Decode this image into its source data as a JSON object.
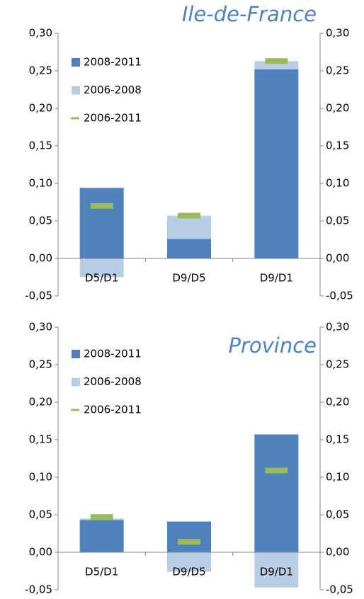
{
  "chart_data": [
    {
      "type": "bar",
      "title": "Ile-de-France",
      "categories": [
        "D5/D1",
        "D9/D5",
        "D9/D1"
      ],
      "series": [
        {
          "name": "2008-2011",
          "color": "#4f81bd",
          "values": [
            0.094,
            0.026,
            0.252
          ]
        },
        {
          "name": "2006-2008",
          "color": "#b9cde5",
          "values": [
            -0.025,
            0.031,
            0.011
          ]
        },
        {
          "name": "2006-2011",
          "color": "#9bbb59",
          "marker": true,
          "values": [
            0.07,
            0.057,
            0.263
          ]
        }
      ],
      "ylim": [
        -0.05,
        0.3
      ],
      "yticks": [
        {
          "value": -0.05,
          "label": "-0,05"
        },
        {
          "value": 0,
          "label": "0,00"
        },
        {
          "value": 0.05,
          "label": "0,05"
        },
        {
          "value": 0.1,
          "label": "0,10"
        },
        {
          "value": 0.15,
          "label": "0,15"
        },
        {
          "value": 0.2,
          "label": "0,20"
        },
        {
          "value": 0.25,
          "label": "0,25"
        },
        {
          "value": 0.3,
          "label": "0,30"
        }
      ],
      "y2lim": [
        -0.05,
        0.3
      ],
      "y2ticks": [
        {
          "value": -0.05,
          "label": "-0,05"
        },
        {
          "value": 0,
          "label": "0,00"
        },
        {
          "value": 0.05,
          "label": "0,05"
        },
        {
          "value": 0.1,
          "label": "0,10"
        },
        {
          "value": 0.15,
          "label": "0,15"
        },
        {
          "value": 0.2,
          "label": "0,20"
        },
        {
          "value": 0.25,
          "label": "0,25"
        },
        {
          "value": 0.3,
          "label": "0,30"
        }
      ],
      "legend": "upper left"
    },
    {
      "type": "bar",
      "title": "Province",
      "categories": [
        "D5/D1",
        "D9/D5",
        "D9/D1"
      ],
      "series": [
        {
          "name": "2008-2011",
          "color": "#4f81bd",
          "values": [
            0.043,
            0.041,
            0.157
          ]
        },
        {
          "name": "2006-2008",
          "color": "#b9cde5",
          "values": [
            0.002,
            -0.026,
            -0.047
          ]
        },
        {
          "name": "2006-2011",
          "color": "#9bbb59",
          "marker": true,
          "values": [
            0.047,
            0.014,
            0.109
          ]
        }
      ],
      "ylim": [
        -0.05,
        0.3
      ],
      "yticks": [
        {
          "value": -0.05,
          "label": "-0,05"
        },
        {
          "value": 0,
          "label": "0,00"
        },
        {
          "value": 0.05,
          "label": "0,05"
        },
        {
          "value": 0.1,
          "label": "0,10"
        },
        {
          "value": 0.15,
          "label": "0,15"
        },
        {
          "value": 0.2,
          "label": "0,20"
        },
        {
          "value": 0.25,
          "label": "0,25"
        },
        {
          "value": 0.3,
          "label": "0,30"
        }
      ],
      "y2lim": [
        -0.05,
        0.3
      ],
      "y2ticks": [
        {
          "value": -0.05,
          "label": "-0,05"
        },
        {
          "value": 0,
          "label": "0,00"
        },
        {
          "value": 0.05,
          "label": "0,05"
        },
        {
          "value": 0.1,
          "label": "0,10"
        },
        {
          "value": 0.15,
          "label": "0,15"
        },
        {
          "value": 0.2,
          "label": "0,20"
        },
        {
          "value": 0.25,
          "label": "0,25"
        },
        {
          "value": 0.3,
          "label": "0,30"
        }
      ],
      "legend": "upper left"
    }
  ]
}
